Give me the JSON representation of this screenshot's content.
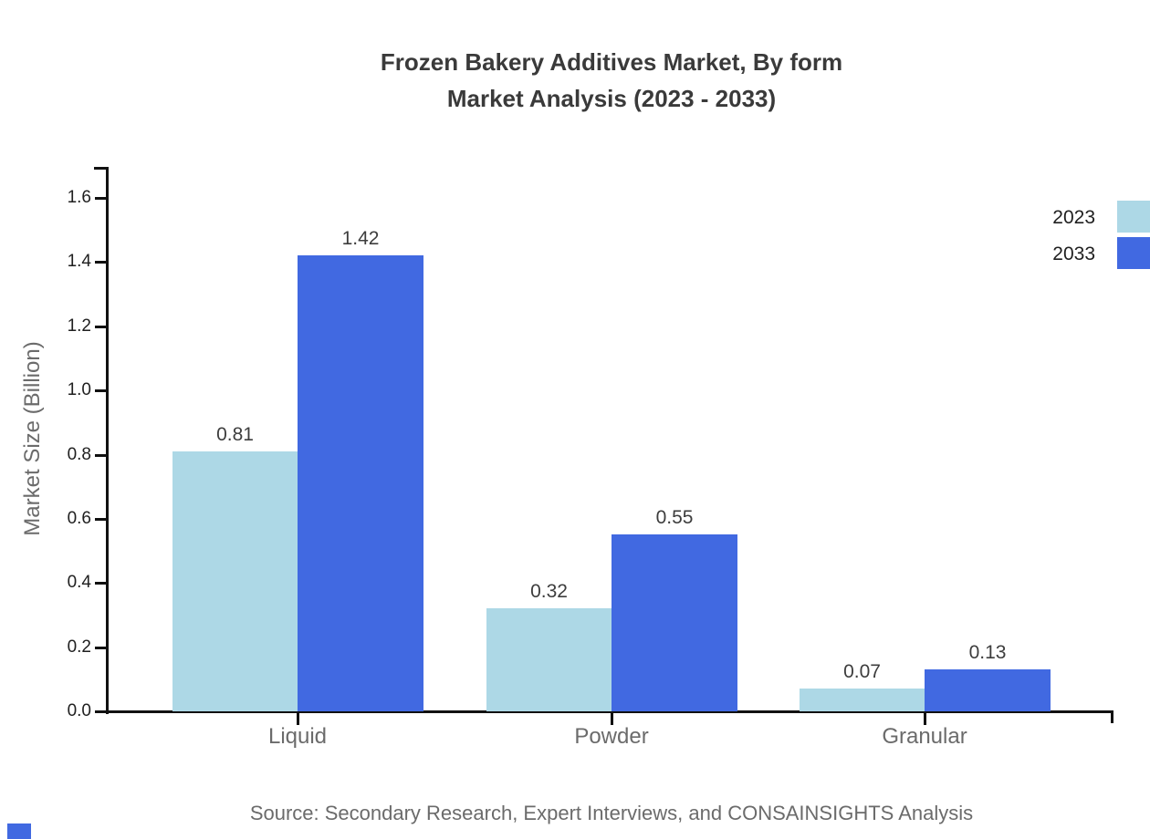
{
  "title": {
    "line1": "Frozen Bakery Additives Market, By form",
    "line2": "Market Analysis (2023 - 2033)"
  },
  "chart_data": {
    "type": "bar",
    "title": "Frozen Bakery Additives Market, By form Market Analysis (2023 - 2033)",
    "categories": [
      "Liquid",
      "Powder",
      "Granular"
    ],
    "series": [
      {
        "name": "2023",
        "color": "#ADD8E6",
        "values": [
          0.81,
          0.32,
          0.07
        ]
      },
      {
        "name": "2033",
        "color": "#4169E1",
        "values": [
          1.42,
          0.55,
          0.13
        ]
      }
    ],
    "xlabel": "",
    "ylabel": "Market Size (Billion)",
    "ylim": [
      0,
      1.6
    ],
    "ytick_step": 0.2,
    "ytick_labels": [
      "0.0",
      "0.2",
      "0.4",
      "0.6",
      "0.8",
      "1.0",
      "1.2",
      "1.4",
      "1.6"
    ],
    "value_labels": [
      [
        "0.81",
        "0.32",
        "0.07"
      ],
      [
        "1.42",
        "0.55",
        "0.13"
      ]
    ],
    "grid": false,
    "legend_position": "upper right"
  },
  "source_note": "Source: Secondary Research, Expert Interviews, and CONSAINSIGHTS Analysis",
  "colors": {
    "axis": "#111111",
    "tick_label": "#1f1f1f",
    "title_text": "#3a3a3a",
    "muted_text": "#6b6b6b",
    "value_label": "#3d3d3d",
    "series_2023": "#ADD8E6",
    "series_2033": "#4169E1",
    "corner_mark": "#4169E1"
  }
}
